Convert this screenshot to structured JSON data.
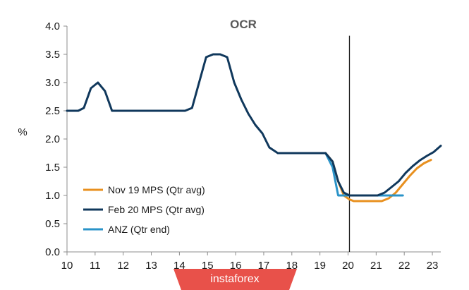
{
  "chart_data": {
    "type": "line",
    "title": "OCR",
    "ylabel": "%",
    "xlabel": "",
    "xlim": [
      10,
      23.3
    ],
    "ylim": [
      0,
      4.0
    ],
    "x_ticks": [
      "10",
      "11",
      "12",
      "13",
      "14",
      "15",
      "16",
      "17",
      "18",
      "19",
      "20",
      "21",
      "22",
      "23"
    ],
    "y_ticks": [
      "0.0",
      "0.5",
      "1.0",
      "1.5",
      "2.0",
      "2.5",
      "3.0",
      "3.5",
      "4.0"
    ],
    "vline_x": 20.05,
    "legend_position": "lower-left",
    "series": [
      {
        "name": "Nov 19 MPS (Qtr avg)",
        "color": "#e8901f",
        "x": [
          19.2,
          19.45,
          19.65,
          19.85,
          20.05,
          20.2,
          20.5,
          20.8,
          21.0,
          21.2,
          21.45,
          21.7,
          21.95,
          22.2,
          22.45,
          22.7,
          22.95
        ],
        "y": [
          1.75,
          1.6,
          1.25,
          1.0,
          0.93,
          0.9,
          0.9,
          0.9,
          0.9,
          0.9,
          0.95,
          1.05,
          1.2,
          1.35,
          1.48,
          1.57,
          1.63
        ]
      },
      {
        "name": "Feb 20 MPS (Qtr avg)",
        "color": "#10385c",
        "x": [
          10.0,
          10.2,
          10.4,
          10.6,
          10.85,
          11.1,
          11.35,
          11.6,
          12.0,
          12.5,
          13.0,
          13.5,
          13.9,
          14.2,
          14.45,
          14.7,
          14.95,
          15.2,
          15.45,
          15.7,
          15.95,
          16.2,
          16.45,
          16.7,
          16.95,
          17.2,
          17.5,
          18.0,
          18.5,
          19.0,
          19.2,
          19.45,
          19.65,
          19.85,
          20.05,
          20.3,
          20.55,
          20.8,
          21.05,
          21.3,
          21.55,
          21.8,
          22.05,
          22.3,
          22.55,
          22.8,
          23.05,
          23.3
        ],
        "y": [
          2.5,
          2.5,
          2.5,
          2.55,
          2.9,
          3.0,
          2.85,
          2.5,
          2.5,
          2.5,
          2.5,
          2.5,
          2.5,
          2.5,
          2.55,
          3.0,
          3.45,
          3.5,
          3.5,
          3.45,
          3.0,
          2.7,
          2.45,
          2.25,
          2.1,
          1.85,
          1.75,
          1.75,
          1.75,
          1.75,
          1.75,
          1.6,
          1.25,
          1.05,
          1.0,
          1.0,
          1.0,
          1.0,
          1.0,
          1.05,
          1.15,
          1.25,
          1.4,
          1.52,
          1.62,
          1.7,
          1.77,
          1.88
        ]
      },
      {
        "name": "ANZ (Qtr end)",
        "color": "#2a93c8",
        "x": [
          19.2,
          19.45,
          19.65,
          19.85,
          20.05,
          20.5,
          21.0,
          21.5,
          21.95
        ],
        "y": [
          1.75,
          1.5,
          1.0,
          1.0,
          1.0,
          1.0,
          1.0,
          1.0,
          1.0
        ]
      }
    ]
  },
  "watermark": {
    "text": "instaforex",
    "bg_color": "#e8514a"
  }
}
